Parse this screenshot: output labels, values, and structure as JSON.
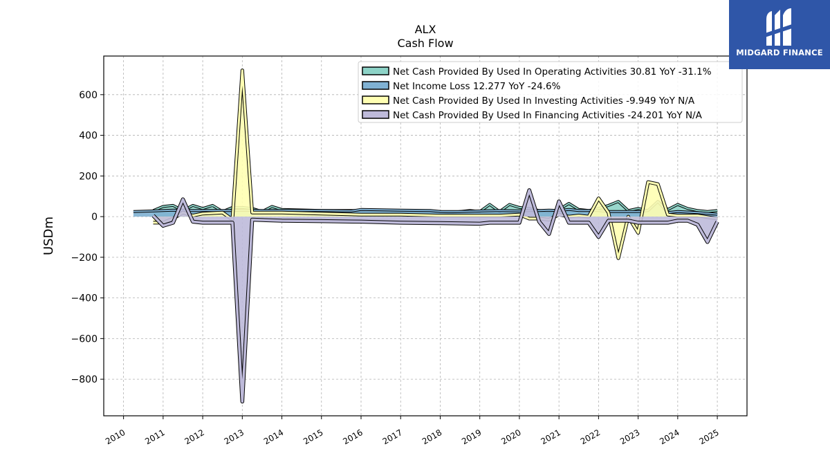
{
  "chart_data": {
    "type": "line",
    "title": "ALX",
    "subtitle": "Cash Flow",
    "ylabel": "USDm",
    "xlabel": "",
    "xlim": [
      2009.5,
      2025.75
    ],
    "ylim": [
      -980,
      790
    ],
    "x_ticks": [
      "2010",
      "2011",
      "2012",
      "2013",
      "2014",
      "2015",
      "2016",
      "2017",
      "2018",
      "2019",
      "2020",
      "2021",
      "2022",
      "2023",
      "2024",
      "2025"
    ],
    "y_ticks": [
      600,
      400,
      200,
      0,
      -200,
      -400,
      -600,
      -800
    ],
    "y_tick_labels": [
      "600",
      "400",
      "200",
      "0",
      "−200",
      "−400",
      "−600",
      "−800"
    ],
    "grid": true,
    "legend_position": "top-right",
    "series": [
      {
        "name": "Net Cash Provided By Used In Operating Activities  30.81 YoY -31.1%",
        "color": "#8dd3c7",
        "x": [
          2010.75,
          2011.0,
          2011.25,
          2011.5,
          2011.75,
          2012.0,
          2012.25,
          2012.5,
          2012.75,
          2013.0,
          2013.25,
          2013.5,
          2013.75,
          2014.0,
          2015.0,
          2016.0,
          2017.0,
          2018.0,
          2018.25,
          2018.5,
          2018.75,
          2019.0,
          2019.25,
          2019.5,
          2019.75,
          2020.0,
          2020.25,
          2020.5,
          2020.75,
          2021.0,
          2021.25,
          2021.5,
          2021.75,
          2022.0,
          2022.25,
          2022.5,
          2022.75,
          2023.0,
          2023.25,
          2023.5,
          2023.75,
          2024.0,
          2024.25,
          2024.5,
          2024.75,
          2025.0
        ],
        "y": [
          30,
          50,
          55,
          30,
          55,
          40,
          55,
          25,
          45,
          45,
          40,
          25,
          50,
          35,
          30,
          30,
          25,
          25,
          20,
          25,
          30,
          25,
          60,
          25,
          60,
          45,
          40,
          30,
          25,
          35,
          65,
          35,
          30,
          40,
          55,
          75,
          30,
          40,
          30,
          75,
          35,
          60,
          40,
          30,
          25,
          30
        ]
      },
      {
        "name": "Net Income Loss  12.277 YoY -24.6%",
        "color": "#80b1d3",
        "x": [
          2010.25,
          2010.75,
          2011.0,
          2011.25,
          2011.5,
          2011.75,
          2012.0,
          2012.5,
          2012.75,
          2013.0,
          2013.5,
          2014.0,
          2015.0,
          2015.75,
          2016.0,
          2017.0,
          2017.75,
          2018.0,
          2018.5,
          2019.0,
          2019.5,
          2020.0,
          2020.25,
          2020.5,
          2020.75,
          2021.0,
          2021.25,
          2021.5,
          2021.75,
          2022.0,
          2022.25,
          2022.5,
          2022.75,
          2023.0,
          2023.25,
          2023.5,
          2023.75,
          2024.0,
          2024.5,
          2025.0
        ],
        "y": [
          25,
          28,
          30,
          32,
          30,
          30,
          30,
          30,
          30,
          32,
          30,
          30,
          30,
          28,
          35,
          32,
          30,
          25,
          25,
          28,
          30,
          28,
          30,
          30,
          32,
          30,
          35,
          30,
          30,
          30,
          25,
          25,
          25,
          25,
          30,
          75,
          20,
          25,
          20,
          12
        ]
      },
      {
        "name": "Net Cash Provided By Used In Investing Activities  -9.949 YoY N/A",
        "color": "#ffffb3",
        "x": [
          2010.75,
          2011.0,
          2011.25,
          2011.5,
          2011.75,
          2012.0,
          2012.5,
          2012.75,
          2013.0,
          2013.25,
          2013.5,
          2014.0,
          2015.0,
          2016.0,
          2017.0,
          2018.0,
          2019.0,
          2019.5,
          2020.0,
          2020.25,
          2020.5,
          2020.75,
          2021.0,
          2021.25,
          2021.5,
          2021.75,
          2022.0,
          2022.25,
          2022.5,
          2022.75,
          2023.0,
          2023.25,
          2023.5,
          2023.75,
          2024.0,
          2024.5,
          2025.0
        ],
        "y": [
          -30,
          -30,
          -10,
          20,
          5,
          15,
          20,
          -15,
          720,
          20,
          20,
          20,
          15,
          10,
          10,
          5,
          5,
          5,
          10,
          -10,
          -10,
          -15,
          10,
          0,
          5,
          0,
          90,
          20,
          -205,
          0,
          -80,
          170,
          160,
          10,
          5,
          5,
          -10
        ]
      },
      {
        "name": "Net Cash Provided By Used In Financing Activities  -24.201 YoY N/A",
        "color": "#bebada",
        "x": [
          2010.75,
          2011.0,
          2011.25,
          2011.5,
          2011.75,
          2012.0,
          2012.5,
          2012.75,
          2013.0,
          2013.25,
          2014.0,
          2015.0,
          2016.0,
          2017.0,
          2018.0,
          2019.0,
          2019.25,
          2020.0,
          2020.25,
          2020.5,
          2020.75,
          2021.0,
          2021.25,
          2021.5,
          2021.75,
          2022.0,
          2022.25,
          2022.5,
          2022.75,
          2023.0,
          2023.25,
          2023.5,
          2023.75,
          2024.0,
          2024.25,
          2024.5,
          2024.75,
          2025.0
        ],
        "y": [
          5,
          -45,
          -30,
          85,
          -25,
          -30,
          -30,
          -30,
          -910,
          -15,
          -20,
          -22,
          -25,
          -30,
          -32,
          -35,
          -30,
          -30,
          130,
          -25,
          -85,
          75,
          -30,
          -30,
          -30,
          -100,
          -20,
          -20,
          -20,
          -30,
          -30,
          -30,
          -30,
          -20,
          -20,
          -40,
          -125,
          -25
        ]
      }
    ]
  },
  "logo": {
    "text": "MIDGARD FINANCE"
  }
}
